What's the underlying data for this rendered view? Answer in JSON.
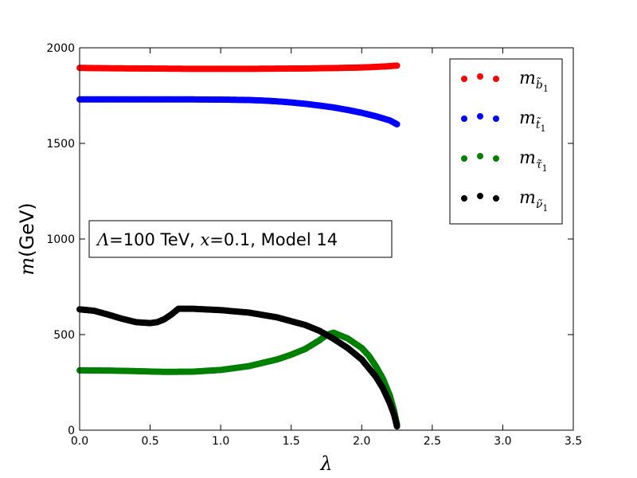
{
  "chart_data": {
    "type": "scatter",
    "xlim": [
      0.0,
      3.5
    ],
    "ylim": [
      0,
      2000
    ],
    "xticks": [
      "0.0",
      "0.5",
      "1.0",
      "1.5",
      "2.0",
      "2.5",
      "3.0",
      "3.5"
    ],
    "yticks": [
      "0",
      "500",
      "1000",
      "1500",
      "2000"
    ],
    "xlabel": "λ",
    "ylabel": {
      "var": "m",
      "unit": "(GeV)"
    },
    "annotation": {
      "parts": [
        {
          "text": "Λ",
          "math": true
        },
        {
          "text": "=",
          "math": false
        },
        {
          "text": "100",
          "math": false
        },
        {
          "text": " TeV, ",
          "math": false
        },
        {
          "text": "x",
          "math": true
        },
        {
          "text": "=0.1, Model 14",
          "math": false
        }
      ]
    },
    "legend_position": "top-right",
    "series": [
      {
        "name": "m_b̃1",
        "label_base": "m",
        "label_sub": "b̃",
        "label_subsub": "1",
        "color": "#ff0000",
        "x": [
          0.0,
          0.2,
          0.4,
          0.6,
          0.8,
          1.0,
          1.2,
          1.4,
          1.6,
          1.8,
          2.0,
          2.1,
          2.2,
          2.25
        ],
        "y": [
          1895,
          1893,
          1892,
          1891,
          1890,
          1890,
          1890,
          1891,
          1892,
          1894,
          1897,
          1900,
          1904,
          1907
        ]
      },
      {
        "name": "m_t̃1",
        "label_base": "m",
        "label_sub": "t̃",
        "label_subsub": "1",
        "color": "#0000ff",
        "x": [
          0.0,
          0.2,
          0.4,
          0.6,
          0.8,
          1.0,
          1.2,
          1.3,
          1.4,
          1.5,
          1.6,
          1.7,
          1.8,
          1.9,
          2.0,
          2.1,
          2.2,
          2.25
        ],
        "y": [
          1730,
          1730,
          1730,
          1730,
          1730,
          1729,
          1727,
          1724,
          1720,
          1714,
          1707,
          1698,
          1688,
          1675,
          1660,
          1642,
          1620,
          1600
        ]
      },
      {
        "name": "m_τ̃1",
        "label_base": "m",
        "label_sub": "τ̃",
        "label_subsub": "1",
        "color": "#008000",
        "x": [
          0.0,
          0.2,
          0.4,
          0.6,
          0.8,
          1.0,
          1.2,
          1.4,
          1.5,
          1.6,
          1.7,
          1.75,
          1.8,
          1.9,
          2.0,
          2.05,
          2.1,
          2.15,
          2.2,
          2.23,
          2.25
        ],
        "y": [
          313,
          312,
          309,
          305,
          306,
          315,
          335,
          370,
          395,
          425,
          470,
          498,
          510,
          480,
          430,
          390,
          335,
          270,
          180,
          100,
          30
        ]
      },
      {
        "name": "m_ν̃1",
        "label_base": "m",
        "label_sub": "ν̃",
        "label_subsub": "1",
        "color": "#000000",
        "x": [
          0.0,
          0.1,
          0.2,
          0.3,
          0.4,
          0.5,
          0.55,
          0.6,
          0.65,
          0.7,
          0.8,
          1.0,
          1.2,
          1.4,
          1.6,
          1.7,
          1.8,
          1.9,
          2.0,
          2.1,
          2.15,
          2.2,
          2.23,
          2.25
        ],
        "y": [
          632,
          625,
          605,
          583,
          565,
          560,
          565,
          580,
          605,
          635,
          635,
          628,
          615,
          590,
          550,
          520,
          478,
          430,
          370,
          280,
          220,
          140,
          80,
          20
        ]
      }
    ]
  }
}
